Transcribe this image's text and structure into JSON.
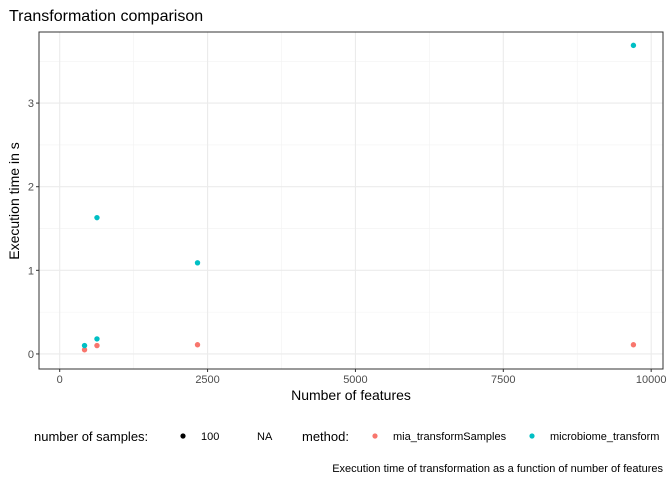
{
  "chart_data": {
    "type": "scatter",
    "title": "Transformation comparison",
    "xlabel": "Number of features",
    "ylabel": "Execution time in s",
    "caption": "Execution time of transformation as a function of number of features",
    "xlim": [
      0,
      10000
    ],
    "ylim": [
      0,
      3.8
    ],
    "x_ticks": [
      0,
      2500,
      5000,
      7500,
      10000
    ],
    "x_tick_labels": [
      "0",
      "2500",
      "5000",
      "7500",
      "10000"
    ],
    "y_ticks": [
      0,
      1,
      2,
      3
    ],
    "y_tick_labels": [
      "0",
      "1",
      "2",
      "3"
    ],
    "grid": true,
    "legend_position": "bottom",
    "legends": {
      "size": {
        "title": "number of samples:",
        "entries": [
          "100",
          "NA"
        ]
      },
      "color": {
        "title": "method:",
        "entries": [
          {
            "label": "mia_transformSamples",
            "color": "#F8766D"
          },
          {
            "label": "microbiome_transform",
            "color": "#00BFC4"
          }
        ]
      }
    },
    "series": [
      {
        "name": "mia_transformSamples",
        "color": "#F8766D",
        "points": [
          {
            "x": 420,
            "y": 0.05
          },
          {
            "x": 630,
            "y": 0.1
          },
          {
            "x": 2330,
            "y": 0.11
          },
          {
            "x": 9700,
            "y": 0.11
          }
        ]
      },
      {
        "name": "microbiome_transform",
        "color": "#00BFC4",
        "points": [
          {
            "x": 420,
            "y": 0.1
          },
          {
            "x": 630,
            "y": 0.18
          },
          {
            "x": 630,
            "y": 1.63
          },
          {
            "x": 2330,
            "y": 1.09
          },
          {
            "x": 9700,
            "y": 3.69
          }
        ]
      }
    ]
  }
}
